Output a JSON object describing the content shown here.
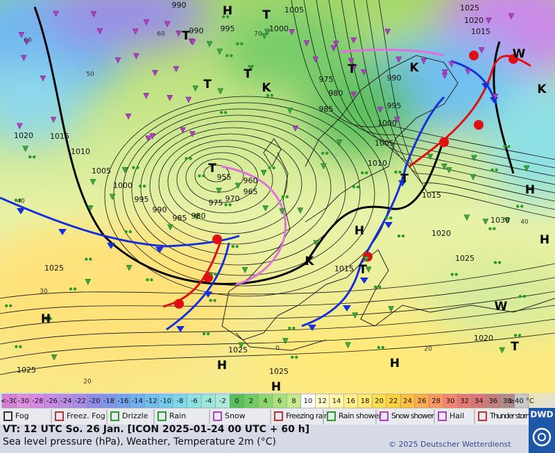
{
  "map": {
    "isobar_labels": [
      990,
      990,
      995,
      1000,
      1005,
      1025,
      1020,
      1015,
      975,
      980,
      985,
      990,
      995,
      1000,
      1005,
      1010,
      1015,
      1020,
      1015,
      1010,
      1005,
      1000,
      995,
      990,
      985,
      980,
      975,
      970,
      965,
      960,
      955,
      1025,
      1030,
      1020,
      1025,
      1015,
      1020,
      1025,
      1025,
      1025
    ],
    "centers": [
      "H",
      "T",
      "T",
      "T",
      "T",
      "T",
      "T",
      "H",
      "H",
      "H",
      "T",
      "H",
      "H",
      "H",
      "H",
      "T",
      "T",
      "K",
      "K",
      "K",
      "K",
      "W",
      "W"
    ],
    "grid_labels": [
      "60",
      "50",
      "40",
      "30",
      "20",
      "0",
      "20",
      "40",
      "70",
      "60"
    ]
  },
  "scale": {
    "labels": [
      "<-30",
      "-30",
      "-28",
      "-26",
      "-24",
      "-22",
      "-20",
      "-18",
      "-16",
      "-14",
      "-12",
      "-10",
      "-8",
      "-6",
      "-4",
      "-2",
      "0",
      "2",
      "4",
      "6",
      "8",
      "10",
      "12",
      "14",
      "16",
      "18",
      "20",
      "22",
      "24",
      "26",
      "28",
      "30",
      "32",
      "34",
      "36",
      "38",
      "≥40 °C"
    ],
    "colors": [
      "#d77fd7",
      "#e08ee0",
      "#d98ae6",
      "#c98ae8",
      "#b88ce8",
      "#a98cea",
      "#8f8ce8",
      "#7f96ec",
      "#73a2ee",
      "#70b0f0",
      "#6fbff0",
      "#74cbee",
      "#7dd7ea",
      "#8de0e4",
      "#9de6dc",
      "#aeeada",
      "#58c05a",
      "#6fcc62",
      "#8cd66e",
      "#a8e07a",
      "#c4ea8c",
      "#ffffff",
      "#fffbc8",
      "#fff6a8",
      "#fff08a",
      "#ffe96e",
      "#ffdf50",
      "#ffd23c",
      "#ffc040",
      "#ffab4e",
      "#ff9860",
      "#f58470",
      "#e87874",
      "#d8767a",
      "#c47e7e",
      "#b08a8a",
      "#c8c8c8"
    ]
  },
  "legend": {
    "items": [
      "Fog",
      "Freez. Fog",
      "Drizzle",
      "Rain",
      "Snow",
      "Freezing rain",
      "Rain shower",
      "Snow shower",
      "Hail",
      "Thunder storm"
    ]
  },
  "footer": {
    "valid_time": "VT: 12 UTC So.   26 Jan. [ICON 2025-01-24  00 UTC + 60 h]",
    "description": "Sea level pressure (hPa), Weather, Temperature 2m (°C)",
    "copyright": "© 2025 Deutscher Wetterdienst"
  },
  "logo": "DWD"
}
